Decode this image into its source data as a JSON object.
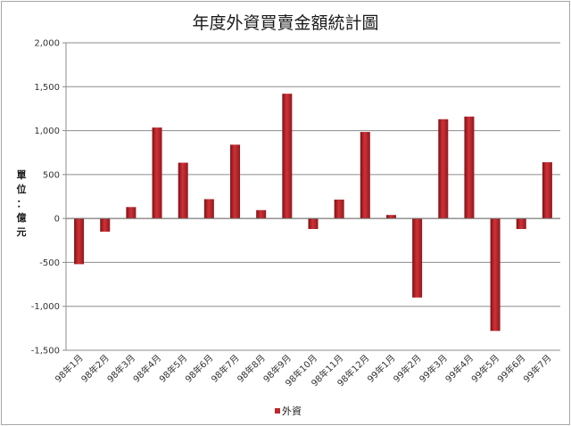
{
  "chart_data": {
    "type": "bar",
    "title": "年度外資買賣金額統計圖",
    "ylabel_chars": [
      "單",
      "位",
      "：",
      "億",
      "元"
    ],
    "ylim": [
      -1500,
      2000
    ],
    "yticks": [
      2000,
      1500,
      1000,
      500,
      0,
      -500,
      -1000,
      -1500
    ],
    "ytick_labels": [
      "2,000",
      "1,500",
      "1,000",
      "500",
      "0",
      "-500",
      "-1,000",
      "-1,500"
    ],
    "grid": true,
    "legend": "bottom",
    "categories": [
      "98年1月",
      "98年2月",
      "98年3月",
      "98年4月",
      "98年5月",
      "98年6月",
      "98年7月",
      "98年8月",
      "98年9月",
      "98年10月",
      "98年11月",
      "98年12月",
      "99年1月",
      "99年2月",
      "99年3月",
      "99年4月",
      "99年5月",
      "99年6月",
      "99年7月"
    ],
    "series": [
      {
        "name": "外資",
        "color": "#c0282d",
        "values": [
          -520,
          -150,
          130,
          1035,
          635,
          220,
          840,
          95,
          1420,
          -120,
          215,
          985,
          40,
          -900,
          1130,
          1160,
          -1280,
          -120,
          640
        ]
      }
    ]
  }
}
